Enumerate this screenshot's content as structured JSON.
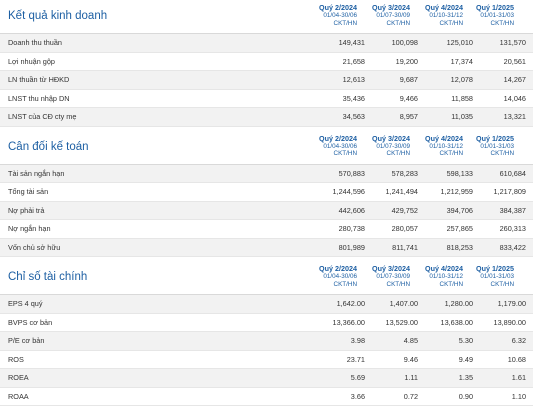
{
  "columns": [
    {
      "quarter": "Quý 2/2024",
      "range": "01/04-30/06",
      "source": "CKT/HN"
    },
    {
      "quarter": "Quý 3/2024",
      "range": "01/07-30/09",
      "source": "CKT/HN"
    },
    {
      "quarter": "Quý 4/2024",
      "range": "01/10-31/12",
      "source": "CKT/HN"
    },
    {
      "quarter": "Quý 1/2025",
      "range": "01/01-31/03",
      "source": "CKT/HN"
    }
  ],
  "sections": [
    {
      "title": "Kết quả kinh doanh",
      "rows": [
        {
          "label": "Doanh thu thuần",
          "values": [
            "149,431",
            "100,098",
            "125,010",
            "131,570"
          ]
        },
        {
          "label": "Lợi nhuận gộp",
          "values": [
            "21,658",
            "19,200",
            "17,374",
            "20,561"
          ]
        },
        {
          "label": "LN thuần từ HĐKD",
          "values": [
            "12,613",
            "9,687",
            "12,078",
            "14,267"
          ]
        },
        {
          "label": "LNST thu nhập DN",
          "values": [
            "35,436",
            "9,466",
            "11,858",
            "14,046"
          ]
        },
        {
          "label": "LNST của CĐ cty mẹ",
          "values": [
            "34,563",
            "8,957",
            "11,035",
            "13,321"
          ]
        }
      ]
    },
    {
      "title": "Cân đối kế toán",
      "rows": [
        {
          "label": "Tài sản ngắn hạn",
          "values": [
            "570,883",
            "578,283",
            "598,133",
            "610,684"
          ]
        },
        {
          "label": "Tổng tài sản",
          "values": [
            "1,244,596",
            "1,241,494",
            "1,212,959",
            "1,217,809"
          ]
        },
        {
          "label": "Nợ phải trả",
          "values": [
            "442,606",
            "429,752",
            "394,706",
            "384,387"
          ]
        },
        {
          "label": "Nợ ngắn hạn",
          "values": [
            "280,738",
            "280,057",
            "257,865",
            "260,313"
          ]
        },
        {
          "label": "Vốn chủ sở hữu",
          "values": [
            "801,989",
            "811,741",
            "818,253",
            "833,422"
          ]
        }
      ]
    },
    {
      "title": "Chỉ số tài chính",
      "rows": [
        {
          "label": "EPS 4 quý",
          "values": [
            "1,642.00",
            "1,407.00",
            "1,280.00",
            "1,179.00"
          ]
        },
        {
          "label": "BVPS cơ bản",
          "values": [
            "13,366.00",
            "13,529.00",
            "13,638.00",
            "13,890.00"
          ]
        },
        {
          "label": "P/E cơ bản",
          "values": [
            "3.98",
            "4.85",
            "5.30",
            "6.32"
          ]
        },
        {
          "label": "ROS",
          "values": [
            "23.71",
            "9.46",
            "9.49",
            "10.68"
          ]
        },
        {
          "label": "ROEA",
          "values": [
            "5.69",
            "1.11",
            "1.35",
            "1.61"
          ]
        },
        {
          "label": "ROAA",
          "values": [
            "3.66",
            "0.72",
            "0.90",
            "1.10"
          ]
        }
      ]
    }
  ]
}
